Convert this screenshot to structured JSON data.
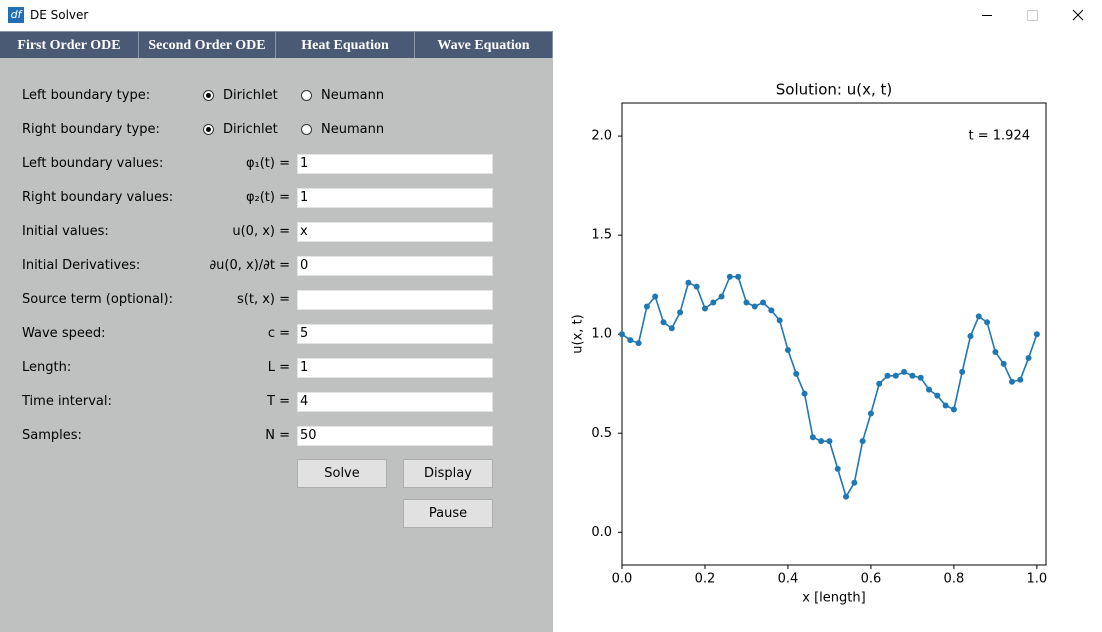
{
  "window": {
    "title": "DE Solver",
    "icon": "df"
  },
  "tabs": [
    "First Order ODE",
    "Second Order ODE",
    "Heat Equation",
    "Wave Equation"
  ],
  "form": {
    "boundary_rows": [
      {
        "label": "Left boundary type:",
        "options": [
          "Dirichlet",
          "Neumann"
        ],
        "selected": 0
      },
      {
        "label": "Right boundary type:",
        "options": [
          "Dirichlet",
          "Neumann"
        ],
        "selected": 0
      }
    ],
    "fields": [
      {
        "label": "Left boundary values:",
        "symbol": "φ₁(t) =",
        "value": "1"
      },
      {
        "label": "Right boundary values:",
        "symbol": "φ₂(t) =",
        "value": "1"
      },
      {
        "label": "Initial values:",
        "symbol": "u(0, x) =",
        "value": "x"
      },
      {
        "label": "Initial Derivatives:",
        "symbol": "∂u(0, x)/∂t =",
        "value": "0"
      },
      {
        "label": "Source term (optional):",
        "symbol": "s(t, x) ="
      },
      {
        "label": "Wave speed:",
        "symbol": "c =",
        "value": "5"
      },
      {
        "label": "Length:",
        "symbol": "L =",
        "value": "1"
      },
      {
        "label": "Time interval:",
        "symbol": "T =",
        "value": "4"
      },
      {
        "label": "Samples:",
        "symbol": "N =",
        "value": "50"
      }
    ]
  },
  "buttons": [
    "Solve",
    "Display",
    "Pause"
  ],
  "chart_data": {
    "type": "line",
    "title": "Solution: u(x, t)",
    "x_label": "x [length]",
    "y_label": "u(x, t)",
    "annotation": "t = 1.924",
    "color": "#1f77b4",
    "x": [
      0,
      0.02,
      0.04,
      0.06,
      0.08,
      0.1,
      0.12,
      0.14,
      0.16,
      0.18,
      0.2,
      0.22,
      0.24,
      0.26,
      0.28,
      0.3,
      0.32,
      0.34,
      0.36,
      0.38,
      0.4,
      0.42,
      0.44,
      0.46,
      0.48,
      0.5,
      0.52,
      0.54,
      0.56,
      0.58,
      0.6,
      0.62,
      0.64,
      0.66,
      0.68,
      0.7,
      0.72,
      0.74,
      0.76,
      0.78,
      0.8,
      0.82,
      0.84,
      0.86,
      0.88,
      0.9,
      0.92,
      0.94,
      0.96,
      0.98,
      1
    ],
    "values": [
      1.0,
      0.97,
      0.955,
      1.14,
      1.19,
      1.06,
      1.03,
      1.11,
      1.26,
      1.24,
      1.13,
      1.16,
      1.19,
      1.29,
      1.29,
      1.16,
      1.14,
      1.16,
      1.12,
      1.07,
      0.92,
      0.8,
      0.7,
      0.48,
      0.46,
      0.46,
      0.32,
      0.18,
      0.25,
      0.46,
      0.6,
      0.75,
      0.79,
      0.79,
      0.81,
      0.79,
      0.78,
      0.72,
      0.69,
      0.64,
      0.62,
      0.81,
      0.99,
      1.09,
      1.06,
      0.91,
      0.85,
      0.76,
      0.77,
      0.88,
      1.0
    ],
    "xlim": [
      0,
      1.022
    ],
    "ylim": [
      -0.165,
      2.167
    ],
    "xticks": [
      {
        "value": 0,
        "label": "0.0"
      },
      0.2,
      0.4,
      0.6,
      0.8,
      {
        "value": 1,
        "label": "1.0"
      }
    ],
    "yticks": [
      {
        "value": 0,
        "label": "0.0"
      },
      0.5,
      {
        "value": 1,
        "label": "1.0"
      },
      1.5,
      {
        "value": 2,
        "label": "2.0"
      }
    ]
  }
}
